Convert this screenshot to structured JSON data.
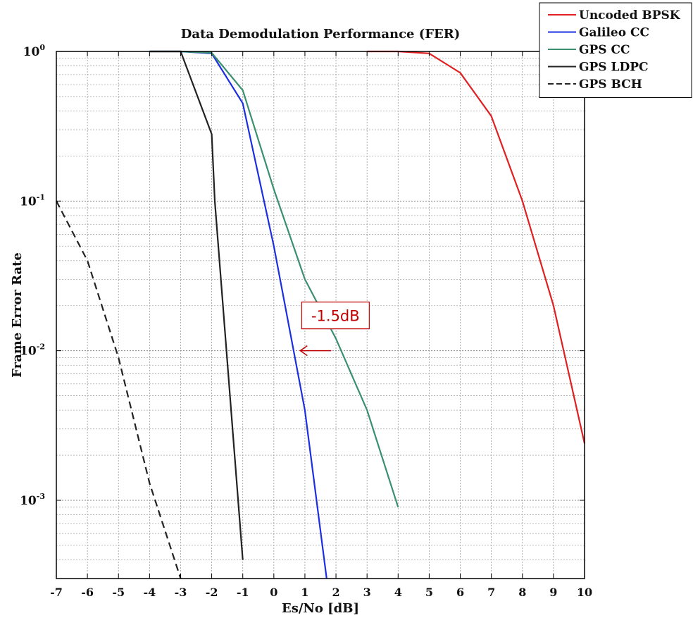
{
  "chart_data": {
    "type": "line",
    "title": "Data Demodulation Performance (FER)",
    "xlabel": "Es/No [dB]",
    "ylabel": "Frame Error Rate",
    "xlim": [
      -7,
      10
    ],
    "ylim": [
      0.0003,
      1
    ],
    "yscale": "log",
    "grid": true,
    "legend_position": "top-right",
    "x_ticks": [
      "-7",
      "-6",
      "-5",
      "-4",
      "-3",
      "-2",
      "-1",
      "0",
      "1",
      "2",
      "3",
      "4",
      "5",
      "6",
      "7",
      "8",
      "9",
      "10"
    ],
    "y_ticks": [
      {
        "value": 1,
        "base": "10",
        "exp": "0"
      },
      {
        "value": 0.1,
        "base": "10",
        "exp": "-1"
      },
      {
        "value": 0.01,
        "base": "10",
        "exp": "-2"
      },
      {
        "value": 0.001,
        "base": "10",
        "exp": "-3"
      }
    ],
    "series": [
      {
        "name": "Uncoded BPSK",
        "color": "#e02020",
        "dash": "solid",
        "x": [
          3,
          4,
          5,
          6,
          7,
          8,
          9,
          10
        ],
        "y": [
          1,
          1,
          0.97,
          0.72,
          0.37,
          0.1,
          0.02,
          0.0024
        ]
      },
      {
        "name": "Galileo CC",
        "color": "#1c2fe0",
        "dash": "solid",
        "x": [
          -4,
          -3,
          -2,
          -1,
          0,
          1,
          1.7
        ],
        "y": [
          1,
          1,
          0.97,
          0.45,
          0.05,
          0.004,
          0.0003
        ]
      },
      {
        "name": "GPS CC",
        "color": "#3a8f6e",
        "dash": "solid",
        "x": [
          -4,
          -3,
          -2,
          -1,
          0,
          1,
          2,
          3,
          4
        ],
        "y": [
          1,
          1,
          0.98,
          0.55,
          0.12,
          0.03,
          0.012,
          0.004,
          0.0009
        ]
      },
      {
        "name": "GPS LDPC",
        "color": "#222222",
        "dash": "solid",
        "x": [
          -4,
          -3,
          -2,
          -1.9,
          -1
        ],
        "y": [
          1,
          1,
          0.28,
          0.1,
          0.0004
        ]
      },
      {
        "name": "GPS BCH",
        "color": "#222222",
        "dash": "dashed",
        "x": [
          -7,
          -6,
          -5,
          -4,
          -3
        ],
        "y": [
          0.1,
          0.04,
          0.009,
          0.0013,
          0.0003
        ]
      }
    ],
    "annotations": [
      {
        "text": "-1.5dB",
        "color": "#c00000",
        "x": 0.85,
        "y": 0.01
      }
    ]
  }
}
